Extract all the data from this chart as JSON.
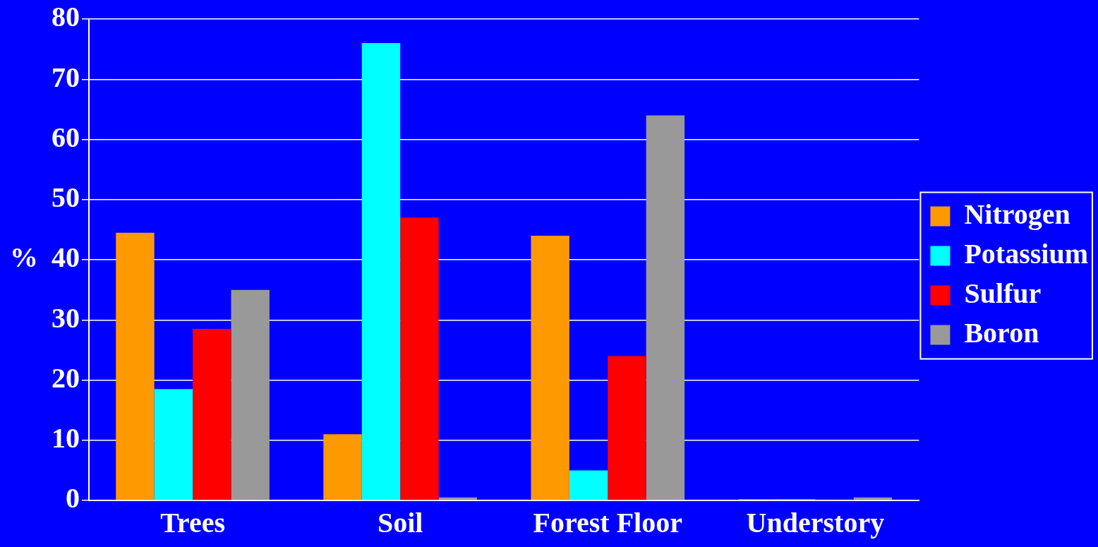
{
  "chart_data": {
    "type": "bar",
    "ylabel": "%",
    "categories": [
      "Trees",
      "Soil",
      "Forest Floor",
      "Understory"
    ],
    "series": [
      {
        "name": "Nitrogen",
        "color": "#ff9900",
        "values": [
          44.5,
          11,
          44,
          0.2
        ]
      },
      {
        "name": "Potassium",
        "color": "#00ffff",
        "values": [
          18.5,
          76,
          5,
          0.2
        ]
      },
      {
        "name": "Sulfur",
        "color": "#ff0000",
        "values": [
          28.5,
          47,
          24,
          0.2
        ]
      },
      {
        "name": "Boron",
        "color": "#999999",
        "values": [
          35,
          0.5,
          64,
          0.5
        ]
      }
    ],
    "ylim": [
      0,
      80
    ],
    "yticks": [
      0,
      10,
      20,
      30,
      40,
      50,
      60,
      70,
      80
    ],
    "grid": "y",
    "legend": "right"
  }
}
